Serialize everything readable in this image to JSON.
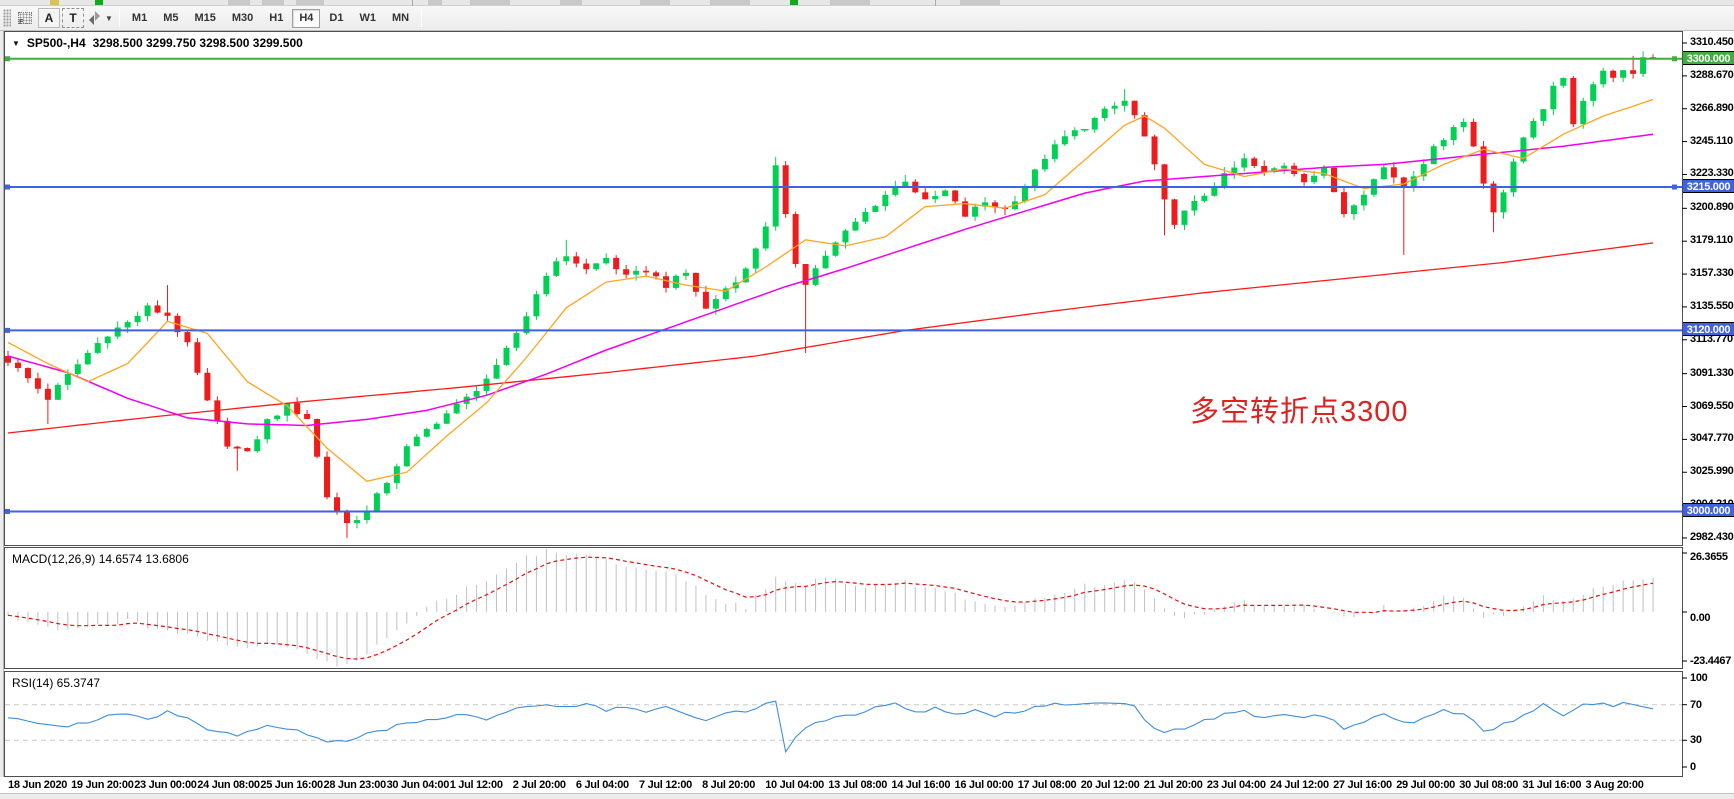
{
  "toolbar": {
    "buttons": [
      {
        "label": "",
        "name": "grid-icon"
      },
      {
        "label": "A",
        "name": "cursor-arrow-button"
      },
      {
        "label": "T",
        "name": "text-tool-button"
      },
      {
        "label": "",
        "name": "shapes-tool-button"
      }
    ],
    "timeframes": [
      "M1",
      "M5",
      "M15",
      "M30",
      "H1",
      "H4",
      "D1",
      "W1",
      "MN"
    ],
    "active_timeframe": "H4"
  },
  "chart": {
    "symbol": "SP500-,H4",
    "quote": "3298.500 3299.750 3298.500 3299.500",
    "annotation": {
      "text": "多空转折点3300",
      "color": "#dd2222"
    }
  },
  "indicators": {
    "macd_label": "MACD(12,26,9) 14.6574 13.6806",
    "rsi_label": "RSI(14) 65.3747"
  },
  "axes": {
    "price_ticks": [
      {
        "label": "3310.450",
        "price": 3310.45
      },
      {
        "label": "3288.670",
        "price": 3288.67
      },
      {
        "label": "3266.890",
        "price": 3266.89
      },
      {
        "label": "3245.110",
        "price": 3245.11
      },
      {
        "label": "3223.330",
        "price": 3223.33
      },
      {
        "label": "3200.890",
        "price": 3200.89
      },
      {
        "label": "3179.110",
        "price": 3179.11
      },
      {
        "label": "3157.330",
        "price": 3157.33
      },
      {
        "label": "3135.550",
        "price": 3135.55
      },
      {
        "label": "3113.770",
        "price": 3113.77
      },
      {
        "label": "3091.330",
        "price": 3091.33
      },
      {
        "label": "3069.550",
        "price": 3069.55
      },
      {
        "label": "3047.770",
        "price": 3047.77
      },
      {
        "label": "3025.990",
        "price": 3025.99
      },
      {
        "label": "3004.210",
        "price": 3004.21
      },
      {
        "label": "2982.430",
        "price": 2982.43
      }
    ],
    "price_badges": [
      {
        "label": "3300.000",
        "price": 3300.0,
        "color": "#3fae3f"
      },
      {
        "label": "3215.000",
        "price": 3215.0,
        "color": "#3e62e0"
      },
      {
        "label": "3120.000",
        "price": 3120.0,
        "color": "#3e62e0"
      },
      {
        "label": "3000.000",
        "price": 3000.0,
        "color": "#3e62e0"
      }
    ],
    "macd_ticks": [
      {
        "label": "26.3655",
        "value": 26.3655
      },
      {
        "label": "0.00",
        "value": 0
      },
      {
        "label": "-23.4467",
        "value": -23.4467
      }
    ],
    "rsi_ticks": [
      {
        "label": "100",
        "value": 100
      },
      {
        "label": "70",
        "value": 70
      },
      {
        "label": "30",
        "value": 30
      },
      {
        "label": "0",
        "value": 0
      }
    ],
    "time_labels": [
      "18 Jun 2020",
      "19 Jun 20:00",
      "23 Jun 00:00",
      "24 Jun 08:00",
      "25 Jun 16:00",
      "28 Jun 23:00",
      "30 Jun 04:00",
      "1 Jul 12:00",
      "2 Jul 20:00",
      "6 Jul 04:00",
      "7 Jul 12:00",
      "8 Jul 20:00",
      "10 Jul 04:00",
      "13 Jul 08:00",
      "14 Jul 16:00",
      "16 Jul 00:00",
      "17 Jul 08:00",
      "20 Jul 12:00",
      "21 Jul 20:00",
      "23 Jul 04:00",
      "24 Jul 12:00",
      "27 Jul 16:00",
      "29 Jul 00:00",
      "30 Jul 08:00",
      "31 Jul 16:00",
      "3 Aug 20:00"
    ]
  },
  "chart_data": {
    "type": "candlestick",
    "symbol": "SP500-",
    "timeframe": "H4",
    "last_quote": {
      "open": 3298.5,
      "high": 3299.75,
      "low": 3298.5,
      "close": 3299.5
    },
    "macd_values": {
      "main": 14.6574,
      "signal": 13.6806
    },
    "rsi_value": 65.3747,
    "n_candles": 166,
    "y_axis_range": [
      2977,
      3315
    ],
    "colors": {
      "up": "#00d053",
      "down": "#ee1c1c",
      "ma_fast": "#ffa520",
      "ma_mid": "#f000f0",
      "ma_slow": "#ff1a1a",
      "macd_hist": "#c0c0c0",
      "macd_signal": "#e21212",
      "rsi": "#3e8ede",
      "level_green": "#3fae3f",
      "level_blue": "#3e62e0"
    },
    "levels": [
      {
        "price": 3300.0,
        "color": "#3fae3f",
        "handles": "both"
      },
      {
        "price": 3215.0,
        "color": "#3e62e0",
        "handles": "both"
      },
      {
        "price": 3120.0,
        "color": "#3e62e0",
        "handles": "left"
      },
      {
        "price": 3000.0,
        "color": "#3e62e0",
        "handles": "left"
      }
    ],
    "close_anchors": [
      [
        0,
        3100
      ],
      [
        2,
        3088
      ],
      [
        4,
        3075
      ],
      [
        6,
        3090
      ],
      [
        8,
        3105
      ],
      [
        10,
        3118
      ],
      [
        12,
        3125
      ],
      [
        14,
        3135
      ],
      [
        16,
        3130
      ],
      [
        18,
        3110
      ],
      [
        20,
        3072
      ],
      [
        22,
        3045
      ],
      [
        24,
        3038
      ],
      [
        26,
        3060
      ],
      [
        28,
        3070
      ],
      [
        30,
        3062
      ],
      [
        32,
        3010
      ],
      [
        34,
        2992
      ],
      [
        36,
        3000
      ],
      [
        38,
        3020
      ],
      [
        40,
        3042
      ],
      [
        43,
        3060
      ],
      [
        46,
        3075
      ],
      [
        49,
        3095
      ],
      [
        52,
        3130
      ],
      [
        54,
        3158
      ],
      [
        56,
        3170
      ],
      [
        58,
        3160
      ],
      [
        60,
        3168
      ],
      [
        62,
        3155
      ],
      [
        64,
        3160
      ],
      [
        66,
        3150
      ],
      [
        68,
        3158
      ],
      [
        70,
        3134
      ],
      [
        72,
        3148
      ],
      [
        74,
        3160
      ],
      [
        76,
        3190
      ],
      [
        77,
        3228
      ],
      [
        78,
        3195
      ],
      [
        79,
        3165
      ],
      [
        80,
        3152
      ],
      [
        82,
        3170
      ],
      [
        84,
        3185
      ],
      [
        86,
        3198
      ],
      [
        88,
        3210
      ],
      [
        90,
        3220
      ],
      [
        92,
        3205
      ],
      [
        94,
        3212
      ],
      [
        96,
        3196
      ],
      [
        98,
        3205
      ],
      [
        100,
        3200
      ],
      [
        102,
        3215
      ],
      [
        104,
        3235
      ],
      [
        106,
        3248
      ],
      [
        108,
        3255
      ],
      [
        110,
        3265
      ],
      [
        112,
        3272
      ],
      [
        113,
        3262
      ],
      [
        114,
        3248
      ],
      [
        115,
        3228
      ],
      [
        116,
        3205
      ],
      [
        117,
        3192
      ],
      [
        118,
        3198
      ],
      [
        120,
        3210
      ],
      [
        122,
        3222
      ],
      [
        124,
        3233
      ],
      [
        126,
        3224
      ],
      [
        128,
        3230
      ],
      [
        130,
        3220
      ],
      [
        132,
        3226
      ],
      [
        134,
        3198
      ],
      [
        136,
        3212
      ],
      [
        138,
        3228
      ],
      [
        140,
        3216
      ],
      [
        142,
        3232
      ],
      [
        144,
        3248
      ],
      [
        145,
        3256
      ],
      [
        146,
        3258
      ],
      [
        147,
        3242
      ],
      [
        148,
        3218
      ],
      [
        149,
        3200
      ],
      [
        150,
        3212
      ],
      [
        151,
        3230
      ],
      [
        152,
        3248
      ],
      [
        153,
        3260
      ],
      [
        154,
        3268
      ],
      [
        155,
        3280
      ],
      [
        156,
        3288
      ],
      [
        157,
        3258
      ],
      [
        158,
        3272
      ],
      [
        159,
        3285
      ],
      [
        160,
        3292
      ],
      [
        161,
        3288
      ],
      [
        162,
        3294
      ],
      [
        163,
        3290
      ],
      [
        164,
        3301
      ],
      [
        165,
        3299.5
      ]
    ],
    "wick_lows": [
      [
        4,
        3058
      ],
      [
        23,
        3027
      ],
      [
        34,
        2982.5
      ],
      [
        80,
        3105
      ],
      [
        116,
        3183
      ],
      [
        140,
        3170
      ],
      [
        149,
        3185
      ]
    ],
    "wick_highs": [
      [
        16,
        3150
      ],
      [
        56,
        3180
      ],
      [
        77,
        3235
      ],
      [
        90,
        3223
      ],
      [
        112,
        3280
      ],
      [
        163,
        3302
      ],
      [
        165,
        3303
      ]
    ],
    "ma_fast_anchors": [
      [
        0,
        3112
      ],
      [
        4,
        3098
      ],
      [
        8,
        3086
      ],
      [
        12,
        3098
      ],
      [
        16,
        3126
      ],
      [
        20,
        3118
      ],
      [
        24,
        3086
      ],
      [
        28,
        3070
      ],
      [
        32,
        3042
      ],
      [
        36,
        3020
      ],
      [
        40,
        3026
      ],
      [
        44,
        3050
      ],
      [
        48,
        3072
      ],
      [
        52,
        3102
      ],
      [
        56,
        3135
      ],
      [
        60,
        3152
      ],
      [
        64,
        3156
      ],
      [
        68,
        3150
      ],
      [
        72,
        3146
      ],
      [
        76,
        3162
      ],
      [
        80,
        3180
      ],
      [
        84,
        3176
      ],
      [
        88,
        3182
      ],
      [
        92,
        3202
      ],
      [
        96,
        3204
      ],
      [
        100,
        3201
      ],
      [
        104,
        3210
      ],
      [
        108,
        3233
      ],
      [
        112,
        3256
      ],
      [
        114,
        3262
      ],
      [
        116,
        3254
      ],
      [
        120,
        3230
      ],
      [
        124,
        3222
      ],
      [
        128,
        3227
      ],
      [
        132,
        3224
      ],
      [
        136,
        3214
      ],
      [
        140,
        3217
      ],
      [
        144,
        3230
      ],
      [
        148,
        3240
      ],
      [
        152,
        3234
      ],
      [
        156,
        3250
      ],
      [
        160,
        3262
      ],
      [
        165,
        3273
      ]
    ],
    "ma_mid_anchors": [
      [
        0,
        3103
      ],
      [
        6,
        3092
      ],
      [
        12,
        3075
      ],
      [
        18,
        3062
      ],
      [
        24,
        3058
      ],
      [
        30,
        3057
      ],
      [
        36,
        3061
      ],
      [
        42,
        3067
      ],
      [
        48,
        3077
      ],
      [
        54,
        3091
      ],
      [
        60,
        3107
      ],
      [
        66,
        3121
      ],
      [
        72,
        3135
      ],
      [
        78,
        3149
      ],
      [
        84,
        3161
      ],
      [
        90,
        3174
      ],
      [
        96,
        3187
      ],
      [
        102,
        3199
      ],
      [
        108,
        3211
      ],
      [
        114,
        3219
      ],
      [
        120,
        3222
      ],
      [
        126,
        3225
      ],
      [
        132,
        3228
      ],
      [
        138,
        3230
      ],
      [
        144,
        3234
      ],
      [
        150,
        3238
      ],
      [
        156,
        3242
      ],
      [
        165,
        3250
      ]
    ],
    "ma_slow_anchors": [
      [
        0,
        3052
      ],
      [
        15,
        3063
      ],
      [
        30,
        3073
      ],
      [
        45,
        3082
      ],
      [
        60,
        3092
      ],
      [
        75,
        3103
      ],
      [
        90,
        3120
      ],
      [
        105,
        3133
      ],
      [
        120,
        3145
      ],
      [
        135,
        3155
      ],
      [
        150,
        3165
      ],
      [
        165,
        3178
      ]
    ],
    "macd_anchors": [
      [
        0,
        -2
      ],
      [
        3,
        -5
      ],
      [
        6,
        -8
      ],
      [
        9,
        -6
      ],
      [
        12,
        -4
      ],
      [
        15,
        -7
      ],
      [
        18,
        -10
      ],
      [
        21,
        -13
      ],
      [
        24,
        -16
      ],
      [
        27,
        -14
      ],
      [
        30,
        -18
      ],
      [
        32,
        -22
      ],
      [
        34,
        -23.4
      ],
      [
        36,
        -18
      ],
      [
        38,
        -12
      ],
      [
        40,
        -4
      ],
      [
        42,
        2
      ],
      [
        44,
        6
      ],
      [
        46,
        10
      ],
      [
        48,
        14
      ],
      [
        50,
        18
      ],
      [
        52,
        24
      ],
      [
        54,
        26.4
      ],
      [
        56,
        25
      ],
      [
        58,
        24
      ],
      [
        60,
        22
      ],
      [
        62,
        20
      ],
      [
        64,
        19
      ],
      [
        66,
        17
      ],
      [
        68,
        14
      ],
      [
        70,
        8
      ],
      [
        72,
        4
      ],
      [
        74,
        2
      ],
      [
        76,
        10
      ],
      [
        77,
        16
      ],
      [
        78,
        14
      ],
      [
        80,
        12
      ],
      [
        82,
        15
      ],
      [
        84,
        13
      ],
      [
        86,
        11
      ],
      [
        88,
        12
      ],
      [
        90,
        13
      ],
      [
        92,
        11
      ],
      [
        94,
        9
      ],
      [
        96,
        6
      ],
      [
        98,
        4
      ],
      [
        100,
        2
      ],
      [
        102,
        4
      ],
      [
        104,
        7
      ],
      [
        106,
        9
      ],
      [
        108,
        11
      ],
      [
        110,
        12
      ],
      [
        112,
        13
      ],
      [
        114,
        10
      ],
      [
        116,
        2
      ],
      [
        118,
        -3
      ],
      [
        120,
        -1
      ],
      [
        122,
        2
      ],
      [
        124,
        4
      ],
      [
        126,
        3
      ],
      [
        128,
        4
      ],
      [
        130,
        2
      ],
      [
        132,
        1
      ],
      [
        134,
        -3
      ],
      [
        136,
        -1
      ],
      [
        138,
        2
      ],
      [
        140,
        0
      ],
      [
        142,
        3
      ],
      [
        144,
        6
      ],
      [
        146,
        5
      ],
      [
        148,
        -2
      ],
      [
        150,
        -1
      ],
      [
        152,
        3
      ],
      [
        154,
        7
      ],
      [
        156,
        5
      ],
      [
        158,
        8
      ],
      [
        160,
        11
      ],
      [
        162,
        13
      ],
      [
        165,
        14.66
      ]
    ],
    "rsi_anchors": [
      [
        0,
        55
      ],
      [
        4,
        48
      ],
      [
        6,
        44
      ],
      [
        9,
        55
      ],
      [
        12,
        60
      ],
      [
        14,
        52
      ],
      [
        16,
        62
      ],
      [
        18,
        55
      ],
      [
        20,
        42
      ],
      [
        23,
        35
      ],
      [
        26,
        46
      ],
      [
        29,
        40
      ],
      [
        32,
        30
      ],
      [
        34,
        28
      ],
      [
        36,
        38
      ],
      [
        39,
        46
      ],
      [
        42,
        52
      ],
      [
        45,
        58
      ],
      [
        48,
        55
      ],
      [
        50,
        62
      ],
      [
        52,
        68
      ],
      [
        54,
        72
      ],
      [
        56,
        66
      ],
      [
        58,
        70
      ],
      [
        60,
        64
      ],
      [
        62,
        68
      ],
      [
        64,
        62
      ],
      [
        66,
        66
      ],
      [
        68,
        58
      ],
      [
        70,
        52
      ],
      [
        72,
        60
      ],
      [
        74,
        64
      ],
      [
        76,
        70
      ],
      [
        77,
        74
      ],
      [
        78,
        18
      ],
      [
        79,
        35
      ],
      [
        81,
        48
      ],
      [
        83,
        55
      ],
      [
        85,
        60
      ],
      [
        87,
        66
      ],
      [
        89,
        70
      ],
      [
        91,
        62
      ],
      [
        93,
        66
      ],
      [
        95,
        58
      ],
      [
        97,
        62
      ],
      [
        99,
        58
      ],
      [
        101,
        62
      ],
      [
        103,
        66
      ],
      [
        105,
        70
      ],
      [
        107,
        68
      ],
      [
        109,
        71
      ],
      [
        111,
        73
      ],
      [
        113,
        68
      ],
      [
        114,
        55
      ],
      [
        115,
        45
      ],
      [
        116,
        38
      ],
      [
        118,
        44
      ],
      [
        120,
        52
      ],
      [
        122,
        58
      ],
      [
        124,
        62
      ],
      [
        126,
        56
      ],
      [
        128,
        60
      ],
      [
        130,
        55
      ],
      [
        132,
        58
      ],
      [
        134,
        43
      ],
      [
        136,
        52
      ],
      [
        138,
        58
      ],
      [
        140,
        48
      ],
      [
        142,
        56
      ],
      [
        144,
        64
      ],
      [
        146,
        60
      ],
      [
        147,
        50
      ],
      [
        148,
        42
      ],
      [
        149,
        40
      ],
      [
        150,
        48
      ],
      [
        152,
        58
      ],
      [
        153,
        64
      ],
      [
        154,
        70
      ],
      [
        155,
        62
      ],
      [
        156,
        56
      ],
      [
        157,
        64
      ],
      [
        158,
        70
      ],
      [
        159,
        72
      ],
      [
        160,
        74
      ],
      [
        161,
        68
      ],
      [
        162,
        72
      ],
      [
        163,
        70
      ],
      [
        165,
        65.37
      ]
    ]
  }
}
